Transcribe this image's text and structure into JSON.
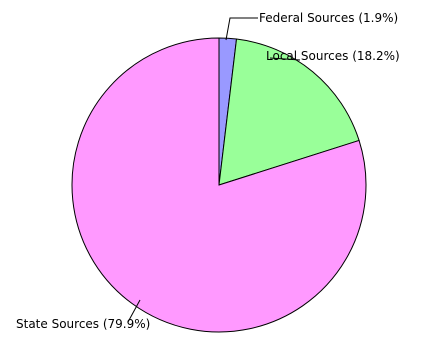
{
  "chart_data": {
    "type": "pie",
    "title": "",
    "start_angle_deg": 0,
    "direction": "clockwise",
    "slices": [
      {
        "name": "Federal Sources",
        "value": 1.9,
        "label": "Federal Sources (1.9%)",
        "color": "#9999ff"
      },
      {
        "name": "Local Sources",
        "value": 18.2,
        "label": "Local Sources (18.2%)",
        "color": "#99ff99"
      },
      {
        "name": "State Sources",
        "value": 79.9,
        "label": "State Sources (79.9%)",
        "color": "#ff99ff"
      }
    ],
    "outline_color": "#000000"
  }
}
